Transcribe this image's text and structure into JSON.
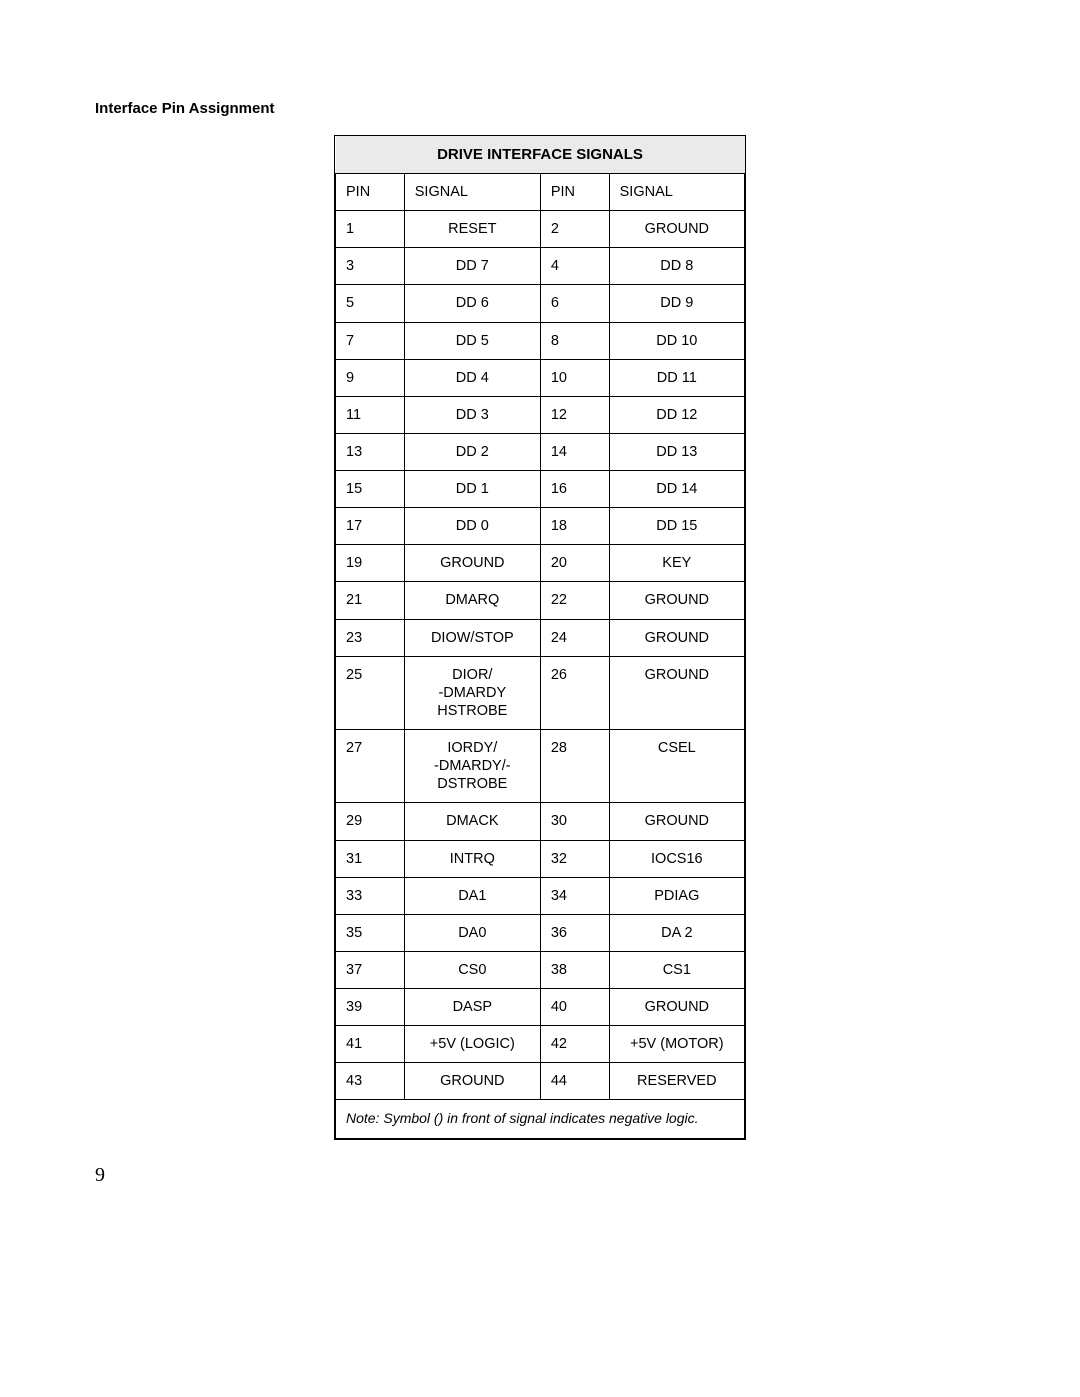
{
  "section_title": "Interface Pin Assignment",
  "table": {
    "header": "DRIVE INTERFACE SIGNALS",
    "columns": [
      "PIN",
      "SIGNAL",
      "PIN",
      "SIGNAL"
    ],
    "rows": [
      [
        "1",
        "RESET",
        "2",
        "GROUND"
      ],
      [
        "3",
        "DD 7",
        "4",
        "DD 8"
      ],
      [
        "5",
        "DD 6",
        "6",
        "DD 9"
      ],
      [
        "7",
        "DD 5",
        "8",
        "DD 10"
      ],
      [
        "9",
        "DD 4",
        "10",
        "DD 11"
      ],
      [
        "11",
        "DD 3",
        "12",
        "DD 12"
      ],
      [
        "13",
        "DD 2",
        "14",
        "DD 13"
      ],
      [
        "15",
        "DD 1",
        "16",
        "DD 14"
      ],
      [
        "17",
        "DD 0",
        "18",
        "DD 15"
      ],
      [
        "19",
        "GROUND",
        "20",
        "KEY"
      ],
      [
        "21",
        "DMARQ",
        "22",
        "GROUND"
      ],
      [
        "23",
        "DIOW/STOP",
        "24",
        "GROUND"
      ],
      [
        "25",
        "DIOR/\n-DMARDY\nHSTROBE",
        "26",
        "GROUND"
      ],
      [
        "27",
        "IORDY/\n-DMARDY/-\nDSTROBE",
        "28",
        "CSEL"
      ],
      [
        "29",
        "DMACK",
        "30",
        "GROUND"
      ],
      [
        "31",
        "INTRQ",
        "32",
        "IOCS16"
      ],
      [
        "33",
        "DA1",
        "34",
        "PDIAG"
      ],
      [
        "35",
        "DA0",
        "36",
        "DA 2"
      ],
      [
        "37",
        "CS0",
        "38",
        "CS1"
      ],
      [
        "39",
        "DASP",
        "40",
        "GROUND"
      ],
      [
        "41",
        "+5V (LOGIC)",
        "42",
        "+5V (MOTOR)"
      ],
      [
        "43",
        "GROUND",
        "44",
        "RESERVED"
      ]
    ],
    "note": "Note: Symbol () in front of signal indicates negative logic."
  },
  "page_number": "9"
}
